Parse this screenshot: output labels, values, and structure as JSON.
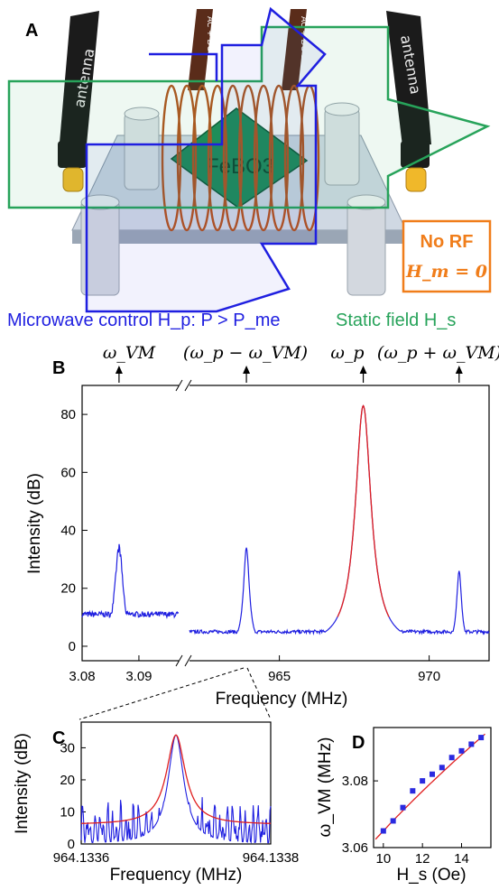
{
  "figure": {
    "panel_a": {
      "label": "A",
      "antenna_text": "antenna",
      "wire_text": "AC + DC current",
      "crystal_text": "FeBO3",
      "no_rf_box": {
        "title": "No RF",
        "equation": "H_m = 0"
      },
      "microwave_caption": "Microwave control H_p: P > P_me",
      "static_caption": "Static field H_s",
      "colors": {
        "microwave": "#1f1fe0",
        "static": "#27a35a",
        "no_rf": "#f07d1a"
      }
    },
    "panel_b": {
      "label": "B",
      "peak_labels": [
        "ω_VM",
        "(ω_p − ω_VM)",
        "ω_p",
        "(ω_p + ω_VM)"
      ]
    },
    "panel_c": {
      "label": "C"
    },
    "panel_d": {
      "label": "D"
    }
  },
  "chart_data": [
    {
      "type": "line",
      "panel": "B",
      "xlabel": "Frequency (MHz)",
      "ylabel": "Intensity (dB)",
      "y_ticks": [
        0,
        20,
        40,
        60,
        80
      ],
      "ylim": [
        -5,
        90
      ],
      "broken_axis": true,
      "segments": [
        {
          "xlim": [
            3.08,
            3.097
          ],
          "x_ticks": [
            "3.08",
            "3.09"
          ],
          "peaks": [
            {
              "x": 3.0865,
              "y": 34
            }
          ],
          "baseline": 11
        },
        {
          "xlim": [
            962.0,
            972.0
          ],
          "x_ticks": [
            "965",
            "970"
          ],
          "peaks": [
            {
              "x": 963.9,
              "y": 34
            },
            {
              "x": 967.8,
              "y": 83
            },
            {
              "x": 971.0,
              "y": 26
            }
          ],
          "baseline": 5
        }
      ],
      "series": [
        {
          "values": "spectrum",
          "color": "#1f1fe0"
        },
        {
          "values": "Lorentzian fit at 967.8 MHz",
          "color": "#e01f1f"
        }
      ]
    },
    {
      "type": "line",
      "panel": "C",
      "xlabel": "Frequency (MHz)",
      "ylabel": "Intensity (dB)",
      "x_ticks": [
        "964.1336",
        "964.1338"
      ],
      "y_ticks": [
        0,
        10,
        20,
        30
      ],
      "xlim": [
        964.1336,
        964.1338
      ],
      "ylim": [
        0,
        38
      ],
      "fit_peak": {
        "x": 964.1337,
        "y": 34
      },
      "series": [
        {
          "values": "spectrum",
          "color": "#1f1fe0"
        },
        {
          "values": "Lorentzian fit",
          "color": "#e01f1f"
        }
      ]
    },
    {
      "type": "scatter",
      "panel": "D",
      "xlabel": "H_s (Oe)",
      "ylabel": "ω_VM (MHz)",
      "x_ticks": [
        10,
        12,
        14
      ],
      "y_ticks": [
        3.06,
        3.08
      ],
      "xlim": [
        9.5,
        15.5
      ],
      "ylim": [
        3.06,
        3.096
      ],
      "x": [
        10,
        10.5,
        11,
        11.5,
        12,
        12.5,
        13,
        13.5,
        14,
        14.5,
        15
      ],
      "y": [
        3.065,
        3.068,
        3.072,
        3.077,
        3.08,
        3.082,
        3.084,
        3.087,
        3.089,
        3.091,
        3.093
      ],
      "fit": "sqrt",
      "colors": {
        "points": "#2a2ae0",
        "fit": "#e01f1f"
      }
    }
  ]
}
